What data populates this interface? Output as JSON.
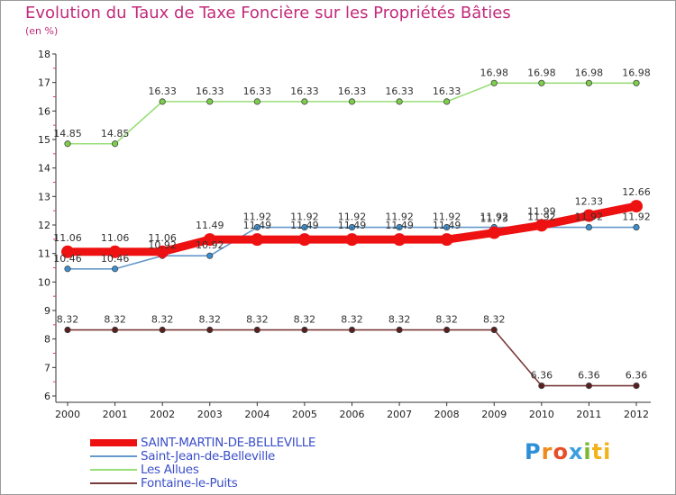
{
  "chart_data": {
    "type": "line",
    "title": "Evolution du Taux de Taxe Foncière sur les Propriétés Bâties",
    "ylabel": "(en %)",
    "xlabel": "",
    "categories": [
      "2000",
      "2001",
      "2002",
      "2003",
      "2004",
      "2005",
      "2006",
      "2007",
      "2008",
      "2009",
      "2010",
      "2011",
      "2012"
    ],
    "ylim": [
      6,
      18
    ],
    "yticks": [
      6,
      7,
      8,
      9,
      10,
      11,
      12,
      13,
      14,
      15,
      16,
      17,
      18
    ],
    "grid": false,
    "series": [
      {
        "name": "SAINT-MARTIN-DE-BELLEVILLE",
        "color": "#ee1111",
        "values": [
          11.06,
          11.06,
          11.06,
          11.49,
          11.49,
          11.49,
          11.49,
          11.49,
          11.49,
          11.73,
          11.99,
          12.33,
          12.66
        ],
        "labels": [
          "11.06",
          "11.06",
          "11.06",
          "11.49",
          "11.49",
          "11.49",
          "11.49",
          "11.49",
          "11.49",
          "11.73",
          "11.99",
          "12.33",
          "12.66"
        ]
      },
      {
        "name": "Saint-Jean-de-Belleville",
        "color": "#6699cc",
        "values": [
          10.46,
          10.46,
          10.92,
          10.92,
          11.92,
          11.92,
          11.92,
          11.92,
          11.92,
          11.92,
          11.92,
          11.92,
          11.92
        ],
        "labels": [
          "10.46",
          "10.46",
          "10.92",
          "10.92",
          "11.92",
          "11.92",
          "11.92",
          "11.92",
          "11.92",
          "11.92",
          "11.92",
          "11.92",
          "11.92"
        ]
      },
      {
        "name": "Les Allues",
        "color": "#99dd77",
        "values": [
          14.85,
          14.85,
          16.33,
          16.33,
          16.33,
          16.33,
          16.33,
          16.33,
          16.33,
          16.98,
          16.98,
          16.98,
          16.98
        ],
        "labels": [
          "14.85",
          "14.85",
          "16.33",
          "16.33",
          "16.33",
          "16.33",
          "16.33",
          "16.33",
          "16.33",
          "16.98",
          "16.98",
          "16.98",
          "16.98"
        ]
      },
      {
        "name": "Fontaine-le-Puits",
        "color": "#7a3b3b",
        "values": [
          8.32,
          8.32,
          8.32,
          8.32,
          8.32,
          8.32,
          8.32,
          8.32,
          8.32,
          8.32,
          6.36,
          6.36,
          6.36
        ],
        "labels": [
          "8.32",
          "8.32",
          "8.32",
          "8.32",
          "8.32",
          "8.32",
          "8.32",
          "8.32",
          "8.32",
          "8.32",
          "6.36",
          "6.36",
          "6.36"
        ]
      }
    ],
    "legend_position": "bottom-left"
  },
  "logo": {
    "letters": [
      "P",
      "r",
      "o",
      "x",
      "i",
      "ti"
    ],
    "label": "Proxiti"
  }
}
